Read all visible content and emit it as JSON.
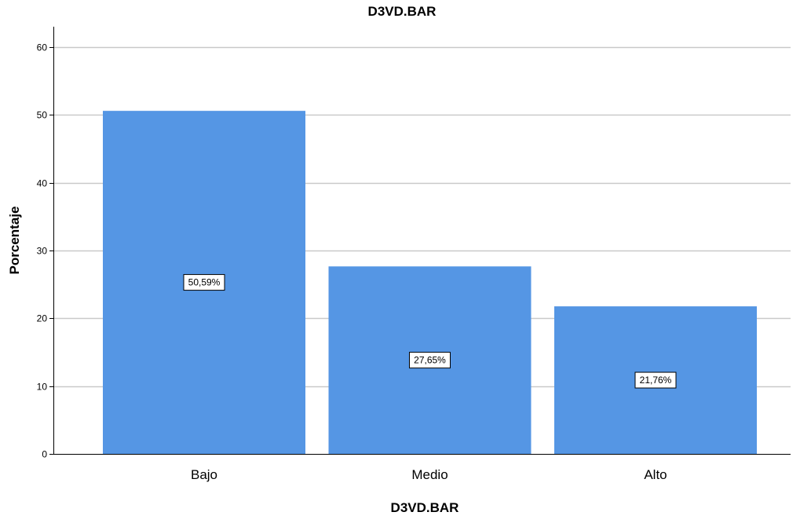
{
  "chart_data": {
    "type": "bar",
    "title": "D3VD.BAR",
    "xlabel": "D3VD.BAR",
    "ylabel": "Porcentaje",
    "categories": [
      "Bajo",
      "Medio",
      "Alto"
    ],
    "values": [
      50.59,
      27.65,
      21.76
    ],
    "data_labels": [
      "50,59%",
      "27,65%",
      "21,76%"
    ],
    "ylim": [
      0,
      63
    ],
    "yticks": [
      0,
      10,
      20,
      30,
      40,
      50,
      60
    ],
    "grid": true,
    "legend": "none",
    "colors": {
      "bar": "#5596e4",
      "grid": "#c9c9c9",
      "axis": "#000000",
      "label_box": "#ffffff"
    }
  }
}
